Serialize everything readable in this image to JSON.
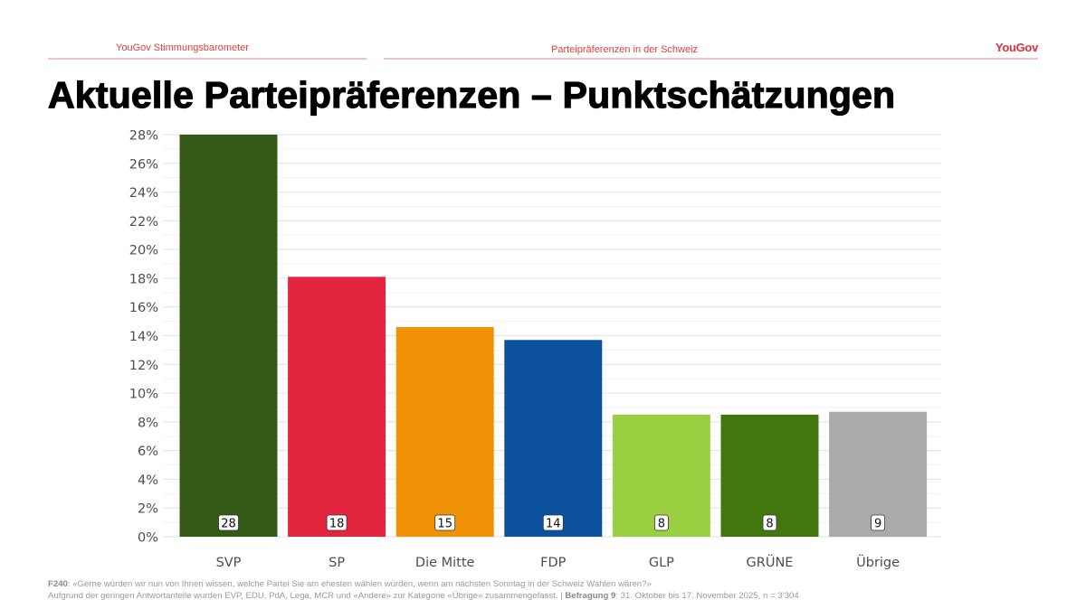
{
  "header": {
    "left_label": "YouGov Stimmungsbarometer",
    "center_label": "Parteipräferenzen in der Schweiz",
    "logo": "YouGov",
    "accent_color": "#e0403a"
  },
  "title": "Aktuelle Parteipräferenzen – Punktschätzungen",
  "chart_data": {
    "type": "bar",
    "title": "Aktuelle Parteipräferenzen – Punktschätzungen",
    "xlabel": "",
    "ylabel": "",
    "categories": [
      "SVP",
      "SP",
      "Die Mitte",
      "FDP",
      "GLP",
      "GRÜNE",
      "Übrige"
    ],
    "values": [
      28.0,
      18.1,
      14.6,
      13.7,
      8.5,
      8.5,
      8.7
    ],
    "data_labels": [
      "28",
      "18",
      "15",
      "14",
      "8",
      "8",
      "9"
    ],
    "colors": [
      "#345a17",
      "#e3263d",
      "#f09205",
      "#0c519e",
      "#99cf40",
      "#42770f",
      "#aaaaaa"
    ],
    "ylim": [
      0,
      28
    ],
    "yticks": [
      0,
      2,
      4,
      6,
      8,
      10,
      12,
      14,
      16,
      18,
      20,
      22,
      24,
      26,
      28
    ],
    "ytick_labels": [
      "0%",
      "2%",
      "4%",
      "6%",
      "8%",
      "10%",
      "12%",
      "14%",
      "16%",
      "18%",
      "20%",
      "22%",
      "24%",
      "26%",
      "28%"
    ],
    "grid": true,
    "legend": "none"
  },
  "footer": {
    "question_id": "F240",
    "question_text": ": «Gerne würden wir nun von Ihnen wissen, welche Partei Sie am ehesten wählen würden, wenn am nächsten Sonntag in der Schweiz Wahlen wären?»",
    "note_text": "Aufgrund der geringen Antwortanteile wurden EVP, EDU, PdA, Lega, MCR und «Andere» zur Kategorie «Übrige» zusammengefasst. | ",
    "survey_label": "Befragung 9",
    "survey_text": ": 31. Oktober bis 17. November 2025, n = 3’304"
  }
}
